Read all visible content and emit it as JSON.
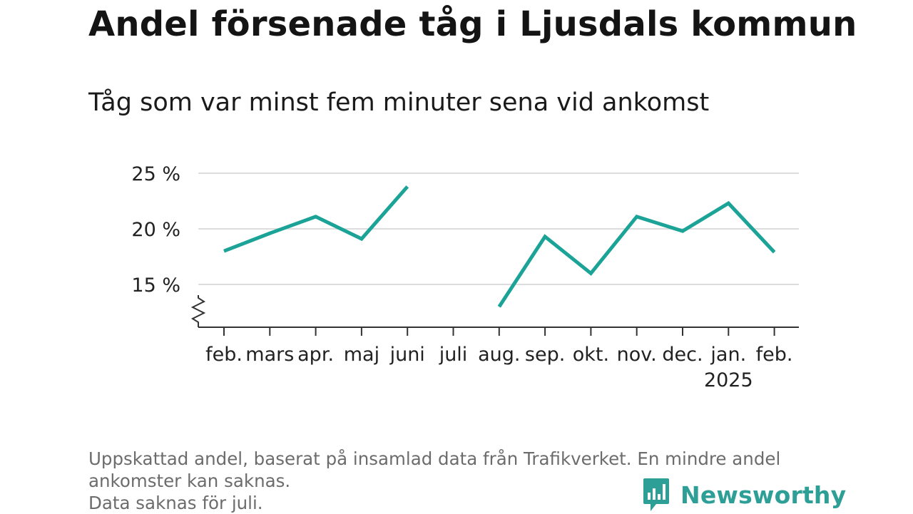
{
  "header": {
    "title": "Andel försenade tåg i Ljusdals kommun",
    "subtitle": "Tåg som var minst fem minuter sena vid ankomst"
  },
  "footer": {
    "notes": [
      "Uppskattad andel, baserat på insamlad data från Trafikverket. En mindre andel",
      "ankomster kan saknas.",
      "Data saknas för juli."
    ],
    "brand": "Newsworthy"
  },
  "colors": {
    "line": "#1aa396",
    "grid": "#dddddd",
    "axis": "#333333",
    "brand": "#2e9f96"
  },
  "icons": {
    "brand_logo": "bar-chart-speech-bubble-icon",
    "axis_break": "zigzag-axis-break-icon"
  },
  "chart_data": {
    "type": "line",
    "categories": [
      "feb.",
      "mars",
      "apr.",
      "maj",
      "juni",
      "juli",
      "aug.",
      "sep.",
      "okt.",
      "nov.",
      "dec.",
      "jan.",
      "feb."
    ],
    "year_labels": {
      "11": "2025"
    },
    "series": [
      {
        "values": [
          18.0,
          19.6,
          21.1,
          19.1,
          23.8,
          null,
          13.0,
          19.3,
          16.0,
          21.1,
          19.8,
          22.3,
          17.9
        ]
      }
    ],
    "ylim": [
      12,
      25
    ],
    "yticks": [
      15,
      20,
      25
    ],
    "ytick_labels": [
      "15 %",
      "20 %",
      "25 %"
    ],
    "grid": true,
    "axis_break": true
  }
}
